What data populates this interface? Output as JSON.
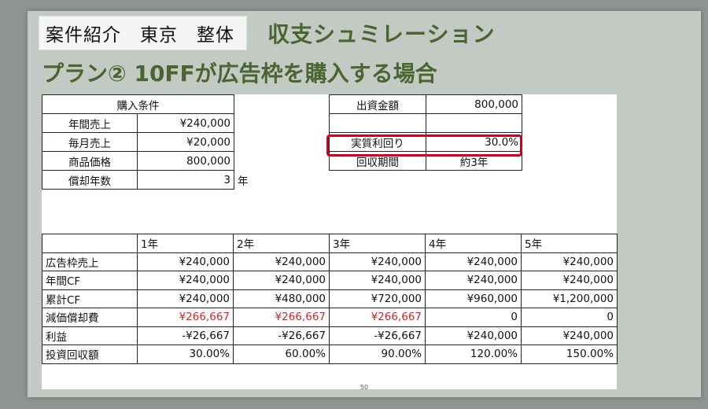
{
  "header": {
    "tag": "案件紹介　東京　整体",
    "section": "収支シュミレーション",
    "plan": "プラン② 10FFが広告枠を購入する場合"
  },
  "purchase": {
    "title": "購入条件",
    "rows": [
      {
        "label": "年間売上",
        "value": "¥240,000"
      },
      {
        "label": "毎月売上",
        "value": "¥20,000"
      },
      {
        "label": "商品価格",
        "value": "800,000"
      },
      {
        "label": "償却年数",
        "value": "3",
        "unit": "年"
      }
    ]
  },
  "summary": {
    "rows": [
      {
        "label": "出資金額",
        "value": "800,000"
      },
      {
        "label": "",
        "value": ""
      },
      {
        "label": "実質利回り",
        "value": "30.0%"
      },
      {
        "label": "回収期間",
        "value": "約3年"
      }
    ]
  },
  "yearly": {
    "headers": [
      "",
      "1年",
      "2年",
      "3年",
      "4年",
      "5年"
    ],
    "rows": [
      {
        "label": "広告枠売上",
        "values": [
          "¥240,000",
          "¥240,000",
          "¥240,000",
          "¥240,000",
          "¥240,000"
        ]
      },
      {
        "label": "年間CF",
        "values": [
          "¥240,000",
          "¥240,000",
          "¥240,000",
          "¥240,000",
          "¥240,000"
        ]
      },
      {
        "label": "累計CF",
        "values": [
          "¥240,000",
          "¥480,000",
          "¥720,000",
          "¥960,000",
          "¥1,200,000"
        ]
      },
      {
        "label": "減価償却費",
        "values": [
          "¥266,667",
          "¥266,667",
          "¥266,667",
          "0",
          "0"
        ]
      },
      {
        "label": "利益",
        "values": [
          "-¥26,667",
          "-¥26,667",
          "-¥26,667",
          "¥240,000",
          "¥240,000"
        ]
      },
      {
        "label": "投資回収額",
        "values": [
          "30.00%",
          "60.00%",
          "90.00%",
          "120.00%",
          "150.00%"
        ]
      }
    ]
  },
  "footer": {
    "page": "50"
  },
  "colors": {
    "accent_green": "#4a6530",
    "highlight_red": "#d1001c",
    "negative_red": "#d22"
  }
}
